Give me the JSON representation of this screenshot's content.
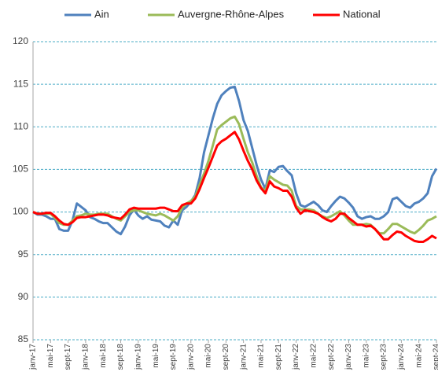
{
  "chart_data": {
    "type": "line",
    "categories": [
      "janv-17",
      null,
      null,
      null,
      "mai-17",
      null,
      null,
      null,
      "sept-17",
      null,
      null,
      null,
      "janv-18",
      null,
      null,
      null,
      "mai-18",
      null,
      null,
      null,
      "sept-18",
      null,
      null,
      null,
      "janv-19",
      null,
      null,
      null,
      "mai-19",
      null,
      null,
      null,
      "sept-19",
      null,
      null,
      null,
      "janv-20",
      null,
      null,
      null,
      "mai-20",
      null,
      null,
      null,
      "sept-20",
      null,
      null,
      null,
      "janv-21",
      null,
      null,
      null,
      "mai-21",
      null,
      null,
      null,
      "sept-21",
      null,
      null,
      null,
      "janv-22",
      null,
      null,
      null,
      "mai-22",
      null,
      null,
      null,
      "sept-22",
      null,
      null,
      null,
      "janv-23",
      null,
      null,
      null,
      "mai-23",
      null,
      null,
      null,
      "sept-23",
      null,
      null,
      null,
      "janv-24",
      null,
      null,
      null,
      "mai-24",
      null,
      null,
      null,
      "sept-24"
    ],
    "series": [
      {
        "name": "Ain",
        "color": "#4f81bd",
        "values": [
          100,
          99.7,
          99.7,
          99.5,
          99.2,
          99.2,
          98,
          97.8,
          97.8,
          99,
          101,
          100.6,
          100.2,
          99.4,
          99.2,
          98.9,
          98.7,
          98.7,
          98.2,
          97.7,
          97.4,
          98.3,
          99.6,
          100.3,
          99.6,
          99.2,
          99.5,
          99.1,
          99,
          98.9,
          98.4,
          98.2,
          99,
          98.5,
          100.2,
          100.6,
          101.2,
          102,
          104,
          107,
          109,
          111,
          112.7,
          113.7,
          114.2,
          114.6,
          114.7,
          113,
          110.8,
          109.5,
          107.5,
          105.5,
          103.8,
          102.7,
          104.9,
          104.7,
          105.3,
          105.4,
          104.8,
          104.3,
          102.2,
          100.8,
          100.6,
          100.9,
          101.2,
          100.8,
          100.2,
          100,
          100.7,
          101.3,
          101.8,
          101.6,
          101.1,
          100.5,
          99.5,
          99.2,
          99.4,
          99.5,
          99.2,
          99.2,
          99.5,
          100,
          101.5,
          101.7,
          101.2,
          100.7,
          100.5,
          101,
          101.2,
          101.6,
          102.2,
          104.2,
          105.1
        ]
      },
      {
        "name": "Auvergne-Rhône-Alpes",
        "color": "#9bbb59",
        "values": [
          100,
          99.8,
          99.8,
          99.8,
          99.8,
          99.3,
          98.7,
          98.5,
          98.5,
          99,
          99.5,
          99.6,
          99.8,
          99.7,
          99.7,
          99.8,
          99.8,
          99.8,
          99.5,
          99.2,
          99,
          99.5,
          100,
          100.2,
          100.2,
          100,
          99.8,
          99.7,
          99.6,
          99.8,
          99.6,
          99.3,
          99,
          99.5,
          100.5,
          101,
          101.3,
          101.8,
          103.2,
          104.5,
          106,
          107.8,
          109.7,
          110.2,
          110.6,
          111,
          111.2,
          110.3,
          108.6,
          107,
          105.8,
          104.2,
          102.9,
          102.5,
          104.2,
          103.8,
          103.5,
          103.2,
          103.1,
          102.5,
          100.7,
          100.3,
          100.3,
          100.3,
          100.2,
          99.8,
          99.5,
          99.3,
          99.5,
          99.8,
          100.1,
          99.6,
          99,
          98.5,
          98.5,
          98.5,
          98.6,
          98.5,
          98,
          97.5,
          97.5,
          98,
          98.6,
          98.6,
          98.3,
          98,
          97.7,
          97.5,
          97.9,
          98.4,
          99,
          99.2,
          99.5
        ]
      },
      {
        "name": "National",
        "color": "#ff0000",
        "values": [
          100,
          99.8,
          99.8,
          99.9,
          99.9,
          99.5,
          99,
          98.6,
          98.5,
          98.8,
          99.3,
          99.4,
          99.4,
          99.5,
          99.6,
          99.7,
          99.7,
          99.6,
          99.4,
          99.3,
          99.2,
          99.7,
          100.3,
          100.5,
          100.4,
          100.4,
          100.4,
          100.4,
          100.4,
          100.5,
          100.5,
          100.3,
          100.1,
          100.1,
          100.8,
          101,
          101,
          101.6,
          102.7,
          104,
          105.2,
          106.5,
          107.8,
          108.3,
          108.6,
          109,
          109.4,
          108.5,
          107.2,
          106,
          105,
          103.7,
          102.8,
          102.2,
          103.6,
          103,
          102.8,
          102.5,
          102.5,
          101.8,
          100.5,
          99.8,
          100.2,
          100.1,
          100,
          99.8,
          99.4,
          99.1,
          98.9,
          99.2,
          99.8,
          99.8,
          99.3,
          98.9,
          98.5,
          98.5,
          98.3,
          98.4,
          98,
          97.4,
          96.8,
          96.8,
          97.3,
          97.7,
          97.6,
          97.2,
          96.9,
          96.6,
          96.5,
          96.5,
          96.8,
          97.2,
          96.9
        ]
      }
    ],
    "ylim": [
      85,
      120
    ],
    "yticks": [
      85,
      90,
      95,
      100,
      105,
      110,
      115,
      120
    ],
    "grid": true,
    "legend": "top"
  }
}
